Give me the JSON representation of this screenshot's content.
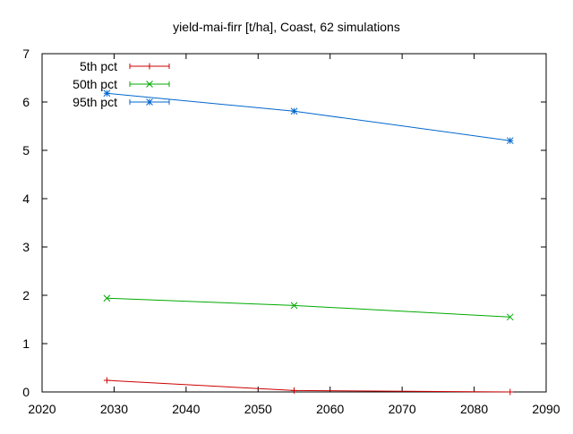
{
  "chart_data": {
    "type": "line",
    "title": "yield-mai-firr [t/ha], Coast, 62 simulations",
    "xlim": [
      2020,
      2090
    ],
    "ylim": [
      0,
      7
    ],
    "x_ticks": [
      "2020",
      "2030",
      "2040",
      "2050",
      "2060",
      "2070",
      "2080",
      "2090"
    ],
    "y_ticks": [
      "0",
      "1",
      "2",
      "3",
      "4",
      "5",
      "6",
      "7"
    ],
    "x": [
      2029,
      2055,
      2085
    ],
    "legend_position": "top-left",
    "grid": false,
    "series": [
      {
        "name": "5th pct",
        "color": "#cc0000",
        "marker": "plus",
        "values": [
          0.24,
          0.03,
          0.0
        ]
      },
      {
        "name": "50th pct",
        "color": "#00aa00",
        "marker": "cross",
        "values": [
          1.94,
          1.79,
          1.55
        ]
      },
      {
        "name": "95th pct",
        "color": "#0066cc",
        "marker": "star",
        "values": [
          6.18,
          5.81,
          5.2
        ]
      }
    ]
  }
}
